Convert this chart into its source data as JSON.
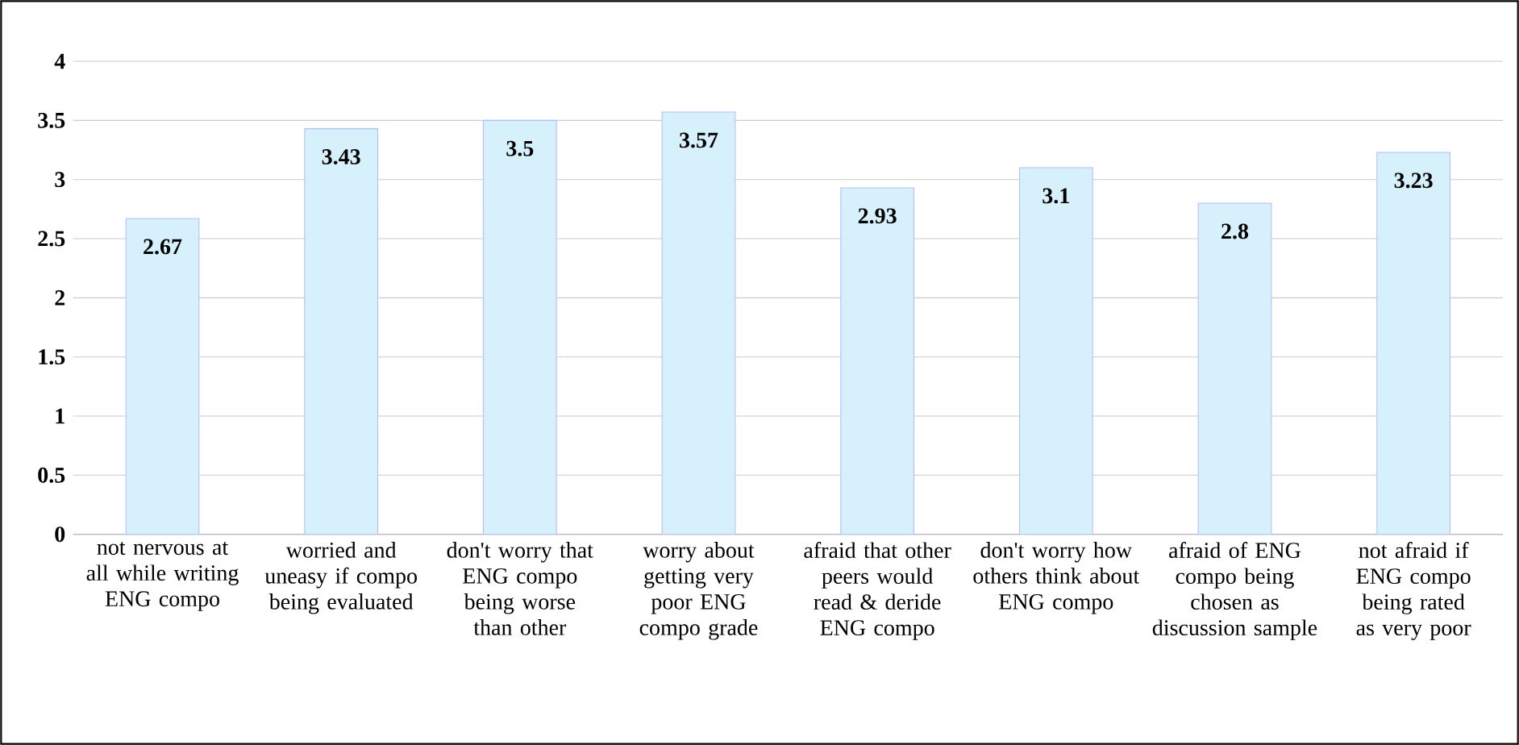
{
  "chart_data": {
    "type": "bar",
    "categories": [
      "not nervous at all while writing ENG compo",
      "worried and uneasy if compo being evaluated",
      "don't worry that ENG compo being worse than other",
      "worry about getting very poor ENG compo grade",
      "afraid that other peers would read & deride ENG compo",
      "don't worry how others think about ENG compo",
      "afraid of ENG compo being chosen as discussion sample",
      "not afraid if ENG compo being rated as very poor"
    ],
    "values": [
      2.67,
      3.43,
      3.5,
      3.57,
      2.93,
      3.1,
      2.8,
      3.23
    ],
    "color": "#d6f1fc",
    "ylim": [
      0,
      4
    ],
    "yticks": [
      0,
      0.5,
      1,
      1.5,
      2,
      2.5,
      3,
      3.5,
      4
    ],
    "grid": "y",
    "data_labels": true
  }
}
